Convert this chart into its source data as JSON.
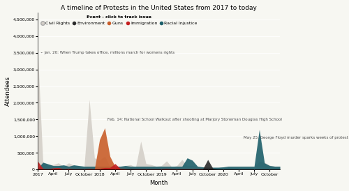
{
  "title": "A timeline of Protests in the United States from 2017 to today",
  "xlabel": "Month",
  "ylabel": "Attendees",
  "legend_title": "Event - click to track issue",
  "legend_labels": [
    "Civil Rights",
    "Environment",
    "Guns",
    "Immigration",
    "Racial Injustice"
  ],
  "legend_colors": [
    "#d4cfc8",
    "#2b2b2b",
    "#c95e2a",
    "#c42020",
    "#1d5f6a"
  ],
  "background_color": "#f7f7f2",
  "ylim": [
    0,
    4700000
  ],
  "yticks": [
    0,
    500000,
    1000000,
    1500000,
    2000000,
    2500000,
    3000000,
    3500000,
    4000000,
    4500000
  ],
  "xtick_positions": [
    0,
    3,
    6,
    9,
    12,
    15,
    18,
    21,
    24,
    27,
    30,
    33,
    36,
    39,
    42,
    45
  ],
  "xtick_labels": [
    "2017",
    "April",
    "July",
    "October",
    "2018",
    "April",
    "July",
    "October",
    "2019",
    "April",
    "July",
    "October",
    "2020",
    "April",
    "July",
    "October"
  ],
  "n_months": 48,
  "ann1_text": "Jan. 20: When Trump takes office, millions march for womens rights",
  "ann1_x": 1.2,
  "ann1_y": 3500000,
  "ann2_text": "Feb. 14: National School Walkout after shooting at Marjory Stoneman Douglas High School",
  "ann2_x": 13.5,
  "ann2_y": 1500000,
  "ann3_text": "May 25: George Floyd murder sparks weeks of protest",
  "ann3_x": 40,
  "ann3_y": 950000,
  "civil_rights": [
    3500000,
    200000,
    150000,
    150000,
    200000,
    100000,
    200000,
    130000,
    80000,
    80000,
    2100000,
    350000,
    280000,
    400000,
    100000,
    80000,
    70000,
    120000,
    150000,
    70000,
    850000,
    180000,
    150000,
    100000,
    120000,
    260000,
    80000,
    120000,
    300000,
    120000,
    120000,
    70000,
    60000,
    60000,
    50000,
    50000,
    50000,
    60000,
    50000,
    50000,
    50000,
    50000,
    50000,
    250000,
    220000,
    130000,
    100000,
    80000
  ],
  "environment": [
    15000,
    10000,
    10000,
    10000,
    12000,
    10000,
    10000,
    10000,
    10000,
    10000,
    10000,
    10000,
    10000,
    12000,
    10000,
    10000,
    10000,
    10000,
    25000,
    10000,
    10000,
    10000,
    10000,
    10000,
    10000,
    10000,
    10000,
    10000,
    10000,
    10000,
    10000,
    10000,
    10000,
    300000,
    35000,
    10000,
    10000,
    10000,
    10000,
    10000,
    10000,
    10000,
    10000,
    10000,
    10000,
    10000,
    10000,
    10000
  ],
  "guns": [
    8000,
    8000,
    8000,
    8000,
    8000,
    8000,
    8000,
    8000,
    8000,
    8000,
    8000,
    8000,
    900000,
    1250000,
    400000,
    90000,
    35000,
    22000,
    8000,
    8000,
    8000,
    8000,
    8000,
    8000,
    8000,
    8000,
    8000,
    8000,
    8000,
    8000,
    8000,
    8000,
    8000,
    8000,
    8000,
    8000,
    8000,
    8000,
    8000,
    8000,
    8000,
    8000,
    8000,
    8000,
    8000,
    8000,
    8000,
    8000
  ],
  "immigration": [
    250000,
    35000,
    25000,
    50000,
    60000,
    25000,
    40000,
    25000,
    25000,
    25000,
    35000,
    25000,
    35000,
    60000,
    60000,
    180000,
    35000,
    25000,
    25000,
    25000,
    25000,
    25000,
    25000,
    25000,
    25000,
    35000,
    25000,
    25000,
    25000,
    25000,
    25000,
    25000,
    25000,
    25000,
    25000,
    12000,
    12000,
    12000,
    12000,
    12000,
    12000,
    12000,
    12000,
    12000,
    12000,
    12000,
    12000,
    12000
  ],
  "racial_injustice": [
    35000,
    220000,
    170000,
    120000,
    120000,
    140000,
    100000,
    140000,
    120000,
    100000,
    100000,
    100000,
    100000,
    100000,
    100000,
    100000,
    100000,
    120000,
    100000,
    100000,
    100000,
    100000,
    100000,
    100000,
    100000,
    100000,
    100000,
    100000,
    100000,
    350000,
    280000,
    100000,
    80000,
    70000,
    70000,
    70000,
    80000,
    100000,
    100000,
    100000,
    100000,
    100000,
    100000,
    1200000,
    200000,
    120000,
    100000,
    100000
  ]
}
